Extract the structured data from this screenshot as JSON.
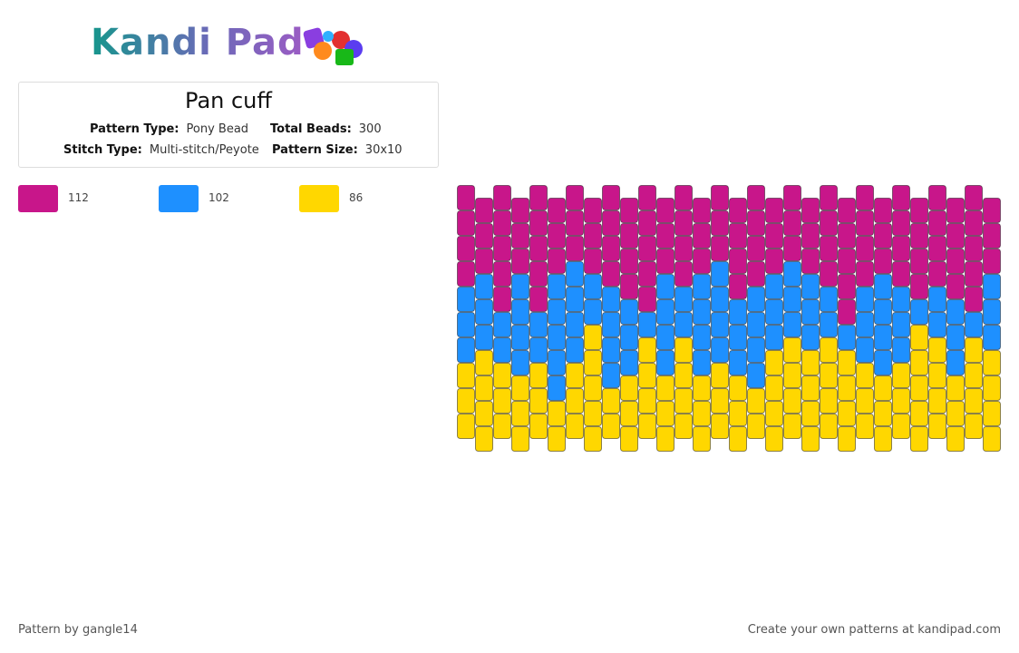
{
  "header": {
    "logo": "Kandi Pad"
  },
  "info": {
    "title": "Pan cuff",
    "pattern_type_label": "Pattern Type:",
    "pattern_type": "Pony Bead",
    "total_beads_label": "Total Beads:",
    "total_beads": 300,
    "stitch_type_label": "Stitch Type:",
    "stitch_type": "Multi-stitch/Peyote",
    "pattern_size_label": "Pattern Size:",
    "pattern_size": "30x10"
  },
  "legend": [
    {
      "color": "#c8168a",
      "count": 112
    },
    {
      "color": "#1e90ff",
      "count": 102
    },
    {
      "color": "#ffd700",
      "count": 86
    }
  ],
  "pattern": {
    "columns": [
      "0000111222",
      "0001112222",
      "0000011222",
      "0001111222",
      "0000011222",
      "0001111122",
      "0001111222",
      "0001122222",
      "0000111122",
      "0000111222",
      "0000012222",
      "0001111222",
      "0000112222",
      "0001111222",
      "0001111222",
      "0000111222",
      "0000111122",
      "0001112222",
      "0001112222",
      "0001112222",
      "0000112222",
      "0000012222",
      "0000111222",
      "0001111222",
      "0000111222",
      "0000122222",
      "0000112222",
      "0000111222",
      "0000012222",
      "0001112222"
    ]
  },
  "footer": {
    "author": "Pattern by gangle14",
    "promo": "Create your own patterns at kandipad.com"
  }
}
